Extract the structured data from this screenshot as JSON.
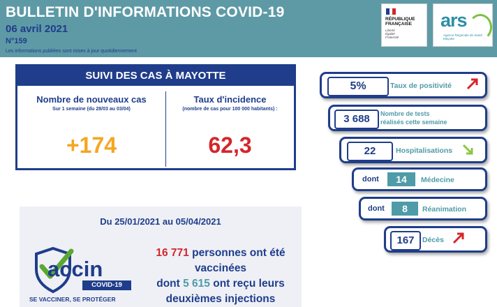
{
  "header": {
    "title": "BULLETIN D'INFORMATIONS COVID-19",
    "date": "06 avril 2021",
    "number": "N°159",
    "note": "Les informations publiées sont mises à jour quotidiennement",
    "rf_logo": {
      "line1": "RÉPUBLIQUE",
      "line2": "FRANÇAISE",
      "motto1": "Liberté",
      "motto2": "Égalité",
      "motto3": "Fraternité"
    },
    "ars_logo": {
      "text": "ars",
      "sub": "Agence Régionale de Santé Mayotte"
    }
  },
  "suivi": {
    "title": "SUIVI DES CAS À MAYOTTE",
    "left_heading": "Nombre de nouveaux cas",
    "left_sub": "Sur 1 semaine (du 28/03 au 03/04)",
    "left_value": "+174",
    "right_heading": "Taux d'incidence",
    "right_sub": "(nombre de cas pour 100 000 habitants) :",
    "right_value": "62,3"
  },
  "indicators": {
    "positivite": {
      "value": "5%",
      "label": "Taux de positivité",
      "trend": "up"
    },
    "tests": {
      "value": "3 688",
      "label1": "Nombre de tests",
      "label2": "réalisés cette semaine"
    },
    "hospitalisations": {
      "value": "22",
      "label": "Hospitalisations",
      "trend": "down"
    },
    "medecine": {
      "prefix": "dont",
      "value": "14",
      "label": "Médecine"
    },
    "reanimation": {
      "prefix": "dont",
      "value": "8",
      "label": "Réanimation"
    },
    "deces": {
      "value": "167",
      "label": "Décès",
      "trend": "up"
    }
  },
  "vaccination": {
    "dates": "Du 25/01/2021 au 05/04/2021",
    "logo_word": "accin",
    "logo_badge": "COVID-19",
    "logo_slogan": "SE VACCINER, SE PROTÉGER",
    "vaccinated_count": "16 771",
    "vaccinated_text1": " personnes ont été",
    "vaccinated_text2": "vaccinées",
    "second_prefix": "dont ",
    "second_count": "5 615",
    "second_text1": " ont reçu leurs",
    "second_text2": "deuxièmes injections"
  },
  "colors": {
    "header_bg": "#5d9aa6",
    "navy": "#1f3d8a",
    "teal": "#4f9ba8",
    "orange": "#f5a623",
    "red": "#d4262b",
    "green_arrow": "#8cc63f"
  }
}
